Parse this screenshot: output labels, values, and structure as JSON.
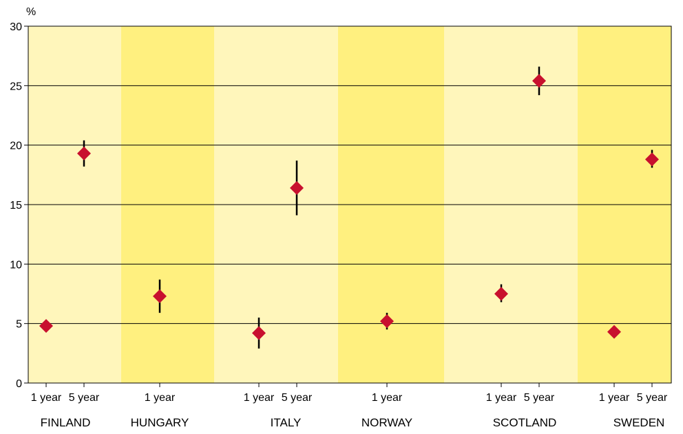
{
  "chart_data": {
    "type": "scatter",
    "title": "",
    "ylabel": "%",
    "ylim": [
      0,
      30
    ],
    "yticks": [
      0,
      5,
      10,
      15,
      20,
      25,
      30
    ],
    "grid": true,
    "band_colors": [
      "#fff6bb",
      "#fff07f"
    ],
    "marker_color": "#c8102e",
    "errorbar_color": "#000000",
    "groups": [
      {
        "country": "FINLAND",
        "band": 0,
        "points": [
          {
            "label": "1 year",
            "value": 4.8,
            "low": 4.4,
            "high": 5.3
          },
          {
            "label": "5 year",
            "value": 19.3,
            "low": 18.2,
            "high": 20.4
          }
        ]
      },
      {
        "country": "HUNGARY",
        "band": 1,
        "points": [
          {
            "label": "1 year",
            "value": 7.3,
            "low": 5.9,
            "high": 8.7
          }
        ]
      },
      {
        "country": "ITALY",
        "band": 0,
        "points": [
          {
            "label": "1 year",
            "value": 4.2,
            "low": 2.9,
            "high": 5.5
          },
          {
            "label": "5 year",
            "value": 16.4,
            "low": 14.1,
            "high": 18.7
          }
        ]
      },
      {
        "country": "NORWAY",
        "band": 1,
        "points": [
          {
            "label": "1 year",
            "value": 5.2,
            "low": 4.5,
            "high": 5.9
          }
        ]
      },
      {
        "country": "SCOTLAND",
        "band": 0,
        "points": [
          {
            "label": "1 year",
            "value": 7.5,
            "low": 6.8,
            "high": 8.3
          },
          {
            "label": "5 year",
            "value": 25.4,
            "low": 24.2,
            "high": 26.6
          }
        ]
      },
      {
        "country": "SWEDEN",
        "band": 1,
        "points": [
          {
            "label": "1 year",
            "value": 4.3,
            "low": 4.0,
            "high": 4.6
          },
          {
            "label": "5 year",
            "value": 18.8,
            "low": 18.1,
            "high": 19.6
          }
        ]
      }
    ]
  }
}
